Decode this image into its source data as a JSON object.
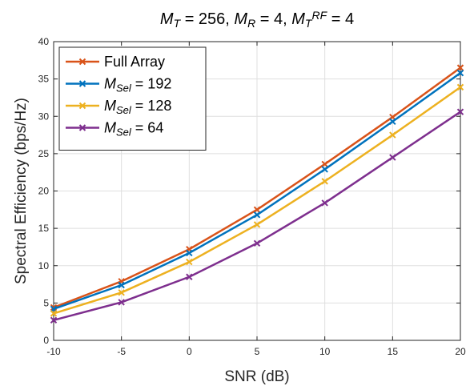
{
  "chart_data": {
    "type": "line",
    "title": {
      "parts": [
        {
          "text": "M",
          "italic": true
        },
        {
          "text": "T",
          "italic": true,
          "sub": true
        },
        {
          "text": " = 256,  "
        },
        {
          "text": "M",
          "italic": true
        },
        {
          "text": "R",
          "italic": true,
          "sub": true
        },
        {
          "text": " = 4,  "
        },
        {
          "text": "M",
          "italic": true
        },
        {
          "text": "T",
          "italic": true,
          "sub": true
        },
        {
          "text": "RF",
          "italic": true,
          "sup": true
        },
        {
          "text": " = 4"
        }
      ]
    },
    "xlabel": "SNR (dB)",
    "ylabel": "Spectral Efficiency (bps/Hz)",
    "xlim": [
      -10,
      20
    ],
    "ylim": [
      0,
      40
    ],
    "xticks": [
      -10,
      -5,
      0,
      5,
      10,
      15,
      20
    ],
    "yticks": [
      0,
      5,
      10,
      15,
      20,
      25,
      30,
      35,
      40
    ],
    "grid": true,
    "legend_position": "top-left",
    "x": [
      -10,
      -5,
      0,
      5,
      10,
      15,
      20
    ],
    "series": [
      {
        "name": "Full Array",
        "label_parts": [
          {
            "text": "Full Array"
          }
        ],
        "color": "#D95319",
        "marker": "x",
        "values": [
          4.4,
          7.9,
          12.2,
          17.5,
          23.6,
          29.9,
          36.5
        ]
      },
      {
        "name": "M_Sel = 192",
        "label_parts": [
          {
            "text": "M",
            "italic": true
          },
          {
            "text": "Sel",
            "italic": true,
            "sub": true
          },
          {
            "text": " = 192"
          }
        ],
        "color": "#0072BD",
        "marker": "x",
        "values": [
          4.2,
          7.4,
          11.7,
          16.8,
          22.9,
          29.3,
          35.8
        ]
      },
      {
        "name": "M_Sel = 128",
        "label_parts": [
          {
            "text": "M",
            "italic": true
          },
          {
            "text": "Sel",
            "italic": true,
            "sub": true
          },
          {
            "text": " = 128"
          }
        ],
        "color": "#EDB120",
        "marker": "x",
        "values": [
          3.6,
          6.4,
          10.5,
          15.5,
          21.3,
          27.5,
          33.9
        ]
      },
      {
        "name": "M_Sel = 64",
        "label_parts": [
          {
            "text": "M",
            "italic": true
          },
          {
            "text": "Sel",
            "italic": true,
            "sub": true
          },
          {
            "text": " = 64"
          }
        ],
        "color": "#7E2F8E",
        "marker": "x",
        "values": [
          2.7,
          5.1,
          8.5,
          13.0,
          18.4,
          24.5,
          30.6
        ]
      }
    ]
  }
}
